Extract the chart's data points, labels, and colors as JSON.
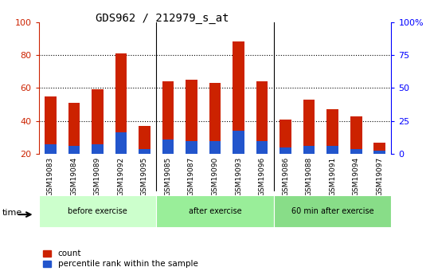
{
  "title": "GDS962 / 212979_s_at",
  "samples": [
    "GSM19083",
    "GSM19084",
    "GSM19089",
    "GSM19092",
    "GSM19095",
    "GSM19085",
    "GSM19087",
    "GSM19090",
    "GSM19093",
    "GSM19096",
    "GSM19086",
    "GSM19088",
    "GSM19091",
    "GSM19094",
    "GSM19097"
  ],
  "count_values": [
    55,
    51,
    59,
    81,
    37,
    64,
    65,
    63,
    88,
    64,
    41,
    53,
    47,
    43,
    27
  ],
  "percentile_values": [
    26,
    25,
    26,
    33,
    23,
    29,
    28,
    28,
    34,
    28,
    24,
    25,
    25,
    23,
    22
  ],
  "bar_width": 0.5,
  "count_color": "#cc2200",
  "percentile_color": "#2255cc",
  "ylim_left": [
    20,
    100
  ],
  "ylim_right": [
    0,
    100
  ],
  "yticks_left": [
    20,
    40,
    60,
    80,
    100
  ],
  "ytick_labels_left": [
    "20",
    "40",
    "60",
    "80",
    "100"
  ],
  "yticks_right_vals": [
    0,
    25,
    50,
    75,
    100
  ],
  "ytick_labels_right": [
    "0",
    "25",
    "50",
    "75",
    "100%"
  ],
  "groups": [
    {
      "label": "before exercise",
      "start": 0,
      "end": 5,
      "color": "#ccffcc"
    },
    {
      "label": "after exercise",
      "start": 5,
      "end": 10,
      "color": "#99ee99"
    },
    {
      "label": "60 min after exercise",
      "start": 10,
      "end": 15,
      "color": "#88dd88"
    }
  ],
  "group_bar_background": "#bbbbbb",
  "plot_bg_color": "#ffffff",
  "tick_label_fontsize": 6.5,
  "title_fontsize": 10,
  "legend_fontsize": 7.5,
  "time_label": "time",
  "count_label": "count",
  "percentile_label": "percentile rank within the sample"
}
